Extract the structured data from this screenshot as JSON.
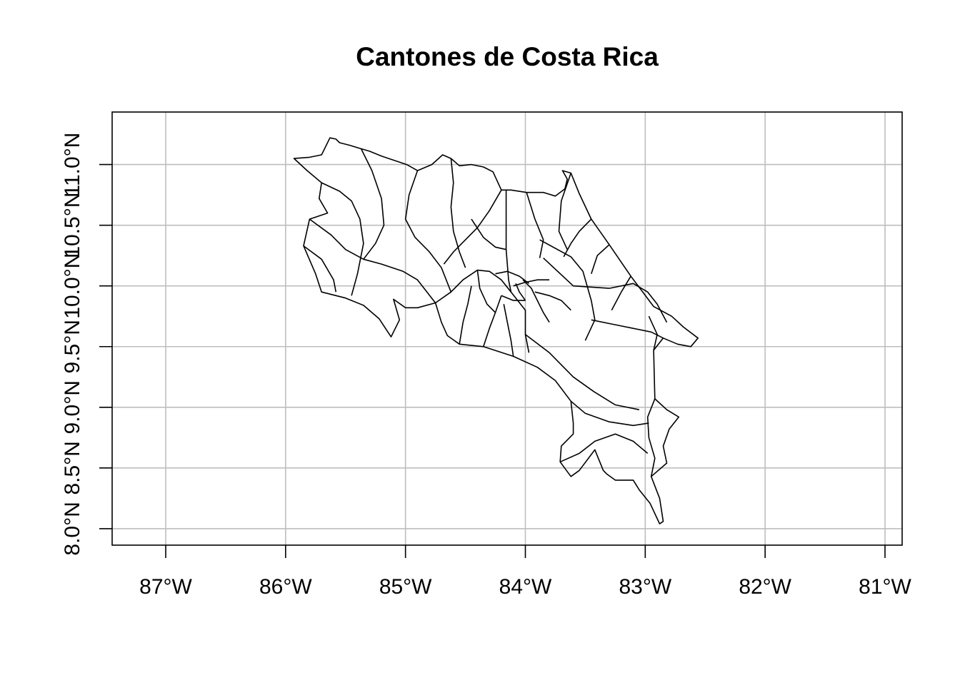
{
  "title": "Cantones de Costa Rica",
  "map": {
    "region": "Costa Rica",
    "feature_type": "cantones",
    "projection": "longlat",
    "xlim": [
      -87.45,
      -80.9
    ],
    "ylim": [
      7.88,
      11.46
    ],
    "grid": true,
    "colors": {
      "background": "#ffffff",
      "grid": "#bebebe",
      "border": "#000000"
    },
    "x_ticks": [
      {
        "value": -87,
        "label": "87°W"
      },
      {
        "value": -86,
        "label": "86°W"
      },
      {
        "value": -85,
        "label": "85°W"
      },
      {
        "value": -84,
        "label": "84°W"
      },
      {
        "value": -83,
        "label": "83°W"
      },
      {
        "value": -82,
        "label": "82°W"
      },
      {
        "value": -81,
        "label": "81°W"
      }
    ],
    "y_ticks": [
      {
        "value": 8.0,
        "label": "8.0°N"
      },
      {
        "value": 8.5,
        "label": "8.5°N"
      },
      {
        "value": 9.0,
        "label": "9.0°N"
      },
      {
        "value": 9.5,
        "label": "9.5°N"
      },
      {
        "value": 10.0,
        "label": "10.0°N"
      },
      {
        "value": 10.5,
        "label": "10.5°N"
      },
      {
        "value": 11.0,
        "label": "11.0°N"
      }
    ],
    "outline": [
      [
        -85.63,
        11.22
      ],
      [
        -85.58,
        11.21
      ],
      [
        -85.55,
        11.18
      ],
      [
        -85.47,
        11.16
      ],
      [
        -85.37,
        11.13
      ],
      [
        -85.3,
        11.11
      ],
      [
        -85.2,
        11.07
      ],
      [
        -84.99,
        11.0
      ],
      [
        -84.9,
        10.95
      ],
      [
        -84.78,
        11.0
      ],
      [
        -84.69,
        11.08
      ],
      [
        -84.62,
        11.05
      ],
      [
        -84.55,
        10.99
      ],
      [
        -84.45,
        11.0
      ],
      [
        -84.35,
        10.98
      ],
      [
        -84.27,
        10.94
      ],
      [
        -84.2,
        10.79
      ],
      [
        -84.12,
        10.79
      ],
      [
        -83.99,
        10.77
      ],
      [
        -83.85,
        10.77
      ],
      [
        -83.75,
        10.74
      ],
      [
        -83.67,
        10.8
      ],
      [
        -83.65,
        10.88
      ],
      [
        -83.69,
        10.95
      ],
      [
        -83.62,
        10.93
      ],
      [
        -83.55,
        10.76
      ],
      [
        -83.45,
        10.55
      ],
      [
        -83.3,
        10.34
      ],
      [
        -83.12,
        10.08
      ],
      [
        -82.93,
        9.83
      ],
      [
        -82.78,
        9.75
      ],
      [
        -82.68,
        9.66
      ],
      [
        -82.56,
        9.57
      ],
      [
        -82.62,
        9.5
      ],
      [
        -82.73,
        9.52
      ],
      [
        -82.85,
        9.57
      ],
      [
        -82.93,
        9.47
      ],
      [
        -82.92,
        9.07
      ],
      [
        -82.82,
        8.98
      ],
      [
        -82.72,
        8.92
      ],
      [
        -82.8,
        8.82
      ],
      [
        -82.85,
        8.68
      ],
      [
        -82.82,
        8.54
      ],
      [
        -82.95,
        8.43
      ],
      [
        -82.88,
        8.25
      ],
      [
        -82.85,
        8.06
      ],
      [
        -82.88,
        8.04
      ],
      [
        -82.96,
        8.21
      ],
      [
        -83.05,
        8.32
      ],
      [
        -83.1,
        8.4
      ],
      [
        -83.25,
        8.4
      ],
      [
        -83.32,
        8.45
      ],
      [
        -83.35,
        8.48
      ],
      [
        -83.42,
        8.65
      ],
      [
        -83.55,
        8.48
      ],
      [
        -83.62,
        8.43
      ],
      [
        -83.71,
        8.55
      ],
      [
        -83.7,
        8.68
      ],
      [
        -83.6,
        8.78
      ],
      [
        -83.6,
        8.87
      ],
      [
        -83.62,
        9.05
      ],
      [
        -83.75,
        9.22
      ],
      [
        -83.9,
        9.33
      ],
      [
        -84.1,
        9.42
      ],
      [
        -84.35,
        9.5
      ],
      [
        -84.55,
        9.52
      ],
      [
        -84.65,
        9.59
      ],
      [
        -84.7,
        9.7
      ],
      [
        -84.75,
        9.86
      ],
      [
        -84.9,
        9.82
      ],
      [
        -85.0,
        9.82
      ],
      [
        -85.1,
        9.89
      ],
      [
        -85.05,
        9.72
      ],
      [
        -85.12,
        9.58
      ],
      [
        -85.22,
        9.73
      ],
      [
        -85.35,
        9.84
      ],
      [
        -85.5,
        9.9
      ],
      [
        -85.7,
        9.95
      ],
      [
        -85.75,
        10.1
      ],
      [
        -85.85,
        10.33
      ],
      [
        -85.8,
        10.55
      ],
      [
        -85.65,
        10.6
      ],
      [
        -85.72,
        10.72
      ],
      [
        -85.7,
        10.85
      ],
      [
        -85.82,
        10.95
      ],
      [
        -85.93,
        11.05
      ],
      [
        -85.8,
        11.06
      ],
      [
        -85.7,
        11.08
      ],
      [
        -85.63,
        11.22
      ]
    ],
    "internal_borders": [
      [
        [
          -84.16,
          10.79
        ],
        [
          -84.16,
          10.3
        ],
        [
          -84.14,
          10.05
        ],
        [
          -84.12,
          9.95
        ]
      ],
      [
        [
          -83.88,
          10.38
        ],
        [
          -83.62,
          10.24
        ],
        [
          -83.52,
          10.12
        ],
        [
          -83.45,
          9.88
        ],
        [
          -83.42,
          9.72
        ],
        [
          -83.5,
          9.55
        ]
      ],
      [
        [
          -83.85,
          10.23
        ],
        [
          -83.6,
          10.0
        ],
        [
          -83.3,
          9.98
        ]
      ],
      [
        [
          -83.3,
          9.98
        ],
        [
          -83.1,
          10.02
        ],
        [
          -82.98,
          9.95
        ],
        [
          -82.9,
          9.85
        ],
        [
          -82.82,
          9.7
        ]
      ],
      [
        [
          -82.93,
          9.47
        ],
        [
          -82.9,
          9.6
        ],
        [
          -82.97,
          9.75
        ]
      ],
      [
        [
          -84.12,
          9.95
        ],
        [
          -84.0,
          9.8
        ],
        [
          -84.0,
          9.6
        ],
        [
          -83.97,
          9.45
        ]
      ],
      [
        [
          -84.0,
          9.6
        ],
        [
          -83.8,
          9.45
        ],
        [
          -83.6,
          9.25
        ],
        [
          -83.43,
          9.13
        ],
        [
          -83.25,
          9.02
        ],
        [
          -83.05,
          8.98
        ]
      ],
      [
        [
          -83.62,
          9.05
        ],
        [
          -83.5,
          8.95
        ],
        [
          -83.3,
          8.88
        ],
        [
          -83.1,
          8.85
        ],
        [
          -82.97,
          8.87
        ]
      ],
      [
        [
          -83.71,
          8.55
        ],
        [
          -83.55,
          8.62
        ],
        [
          -83.42,
          8.72
        ],
        [
          -83.25,
          8.78
        ],
        [
          -83.1,
          8.72
        ],
        [
          -82.98,
          8.62
        ]
      ],
      [
        [
          -82.92,
          9.07
        ],
        [
          -82.98,
          8.92
        ],
        [
          -82.97,
          8.75
        ],
        [
          -82.92,
          8.58
        ],
        [
          -82.95,
          8.43
        ]
      ],
      [
        [
          -84.75,
          9.86
        ],
        [
          -84.62,
          9.95
        ],
        [
          -84.52,
          10.05
        ],
        [
          -84.4,
          10.13
        ],
        [
          -84.3,
          10.12
        ],
        [
          -84.2,
          10.05
        ],
        [
          -84.12,
          9.95
        ]
      ],
      [
        [
          -84.55,
          9.52
        ],
        [
          -84.52,
          9.7
        ],
        [
          -84.48,
          9.85
        ],
        [
          -84.45,
          10.0
        ]
      ],
      [
        [
          -84.35,
          9.5
        ],
        [
          -84.3,
          9.65
        ],
        [
          -84.25,
          9.78
        ],
        [
          -84.2,
          9.92
        ]
      ],
      [
        [
          -84.1,
          9.42
        ],
        [
          -84.12,
          9.55
        ],
        [
          -84.15,
          9.7
        ],
        [
          -84.18,
          9.85
        ]
      ],
      [
        [
          -84.62,
          11.05
        ],
        [
          -84.6,
          10.85
        ],
        [
          -84.62,
          10.65
        ],
        [
          -84.6,
          10.45
        ],
        [
          -84.55,
          10.28
        ],
        [
          -84.5,
          10.15
        ]
      ],
      [
        [
          -84.9,
          10.95
        ],
        [
          -84.97,
          10.75
        ],
        [
          -85.0,
          10.55
        ],
        [
          -84.92,
          10.4
        ],
        [
          -84.8,
          10.28
        ],
        [
          -84.7,
          10.15
        ],
        [
          -84.62,
          9.95
        ]
      ],
      [
        [
          -85.37,
          11.13
        ],
        [
          -85.28,
          10.95
        ],
        [
          -85.2,
          10.72
        ],
        [
          -85.18,
          10.5
        ],
        [
          -85.25,
          10.35
        ],
        [
          -85.35,
          10.22
        ]
      ],
      [
        [
          -85.7,
          10.85
        ],
        [
          -85.55,
          10.78
        ],
        [
          -85.45,
          10.7
        ],
        [
          -85.38,
          10.55
        ],
        [
          -85.35,
          10.35
        ],
        [
          -85.4,
          10.1
        ],
        [
          -85.45,
          9.92
        ]
      ],
      [
        [
          -85.8,
          10.55
        ],
        [
          -85.62,
          10.42
        ],
        [
          -85.5,
          10.3
        ],
        [
          -85.35,
          10.22
        ],
        [
          -85.2,
          10.18
        ],
        [
          -85.02,
          10.12
        ],
        [
          -84.9,
          10.05
        ],
        [
          -84.75,
          9.86
        ]
      ],
      [
        [
          -85.85,
          10.33
        ],
        [
          -85.7,
          10.22
        ],
        [
          -85.6,
          10.05
        ],
        [
          -85.58,
          9.95
        ]
      ],
      [
        [
          -84.2,
          10.79
        ],
        [
          -84.3,
          10.62
        ],
        [
          -84.4,
          10.48
        ],
        [
          -84.5,
          10.38
        ],
        [
          -84.6,
          10.28
        ],
        [
          -84.68,
          10.18
        ]
      ],
      [
        [
          -84.45,
          10.55
        ],
        [
          -84.35,
          10.4
        ],
        [
          -84.25,
          10.32
        ],
        [
          -84.16,
          10.3
        ]
      ],
      [
        [
          -83.99,
          10.77
        ],
        [
          -83.92,
          10.55
        ],
        [
          -83.85,
          10.38
        ],
        [
          -83.88,
          10.23
        ]
      ],
      [
        [
          -83.62,
          10.93
        ],
        [
          -83.7,
          10.7
        ],
        [
          -83.72,
          10.45
        ],
        [
          -83.65,
          10.3
        ]
      ],
      [
        [
          -83.45,
          10.55
        ],
        [
          -83.55,
          10.45
        ],
        [
          -83.62,
          10.35
        ],
        [
          -83.68,
          10.24
        ]
      ],
      [
        [
          -83.3,
          10.34
        ],
        [
          -83.4,
          10.25
        ],
        [
          -83.45,
          10.1
        ]
      ],
      [
        [
          -83.12,
          10.08
        ],
        [
          -83.2,
          9.95
        ],
        [
          -83.28,
          9.8
        ]
      ],
      [
        [
          -82.85,
          9.57
        ],
        [
          -82.95,
          9.62
        ],
        [
          -83.1,
          9.65
        ],
        [
          -83.25,
          9.68
        ],
        [
          -83.45,
          9.72
        ]
      ],
      [
        [
          -84.4,
          10.13
        ],
        [
          -84.38,
          9.98
        ],
        [
          -84.32,
          9.85
        ],
        [
          -84.25,
          9.78
        ]
      ],
      [
        [
          -84.02,
          10.05
        ],
        [
          -83.95,
          9.98
        ],
        [
          -83.9,
          9.88
        ],
        [
          -83.85,
          9.78
        ],
        [
          -83.8,
          9.7
        ]
      ],
      [
        [
          -84.1,
          10.0
        ],
        [
          -84.0,
          10.03
        ],
        [
          -83.9,
          10.05
        ],
        [
          -83.8,
          10.05
        ]
      ],
      [
        [
          -83.92,
          9.95
        ],
        [
          -83.8,
          9.92
        ],
        [
          -83.7,
          9.88
        ],
        [
          -83.62,
          9.8
        ]
      ],
      [
        [
          -84.25,
          10.1
        ],
        [
          -84.15,
          10.12
        ],
        [
          -84.05,
          10.08
        ],
        [
          -83.97,
          10.02
        ]
      ],
      [
        [
          -84.0,
          9.88
        ],
        [
          -84.05,
          9.95
        ],
        [
          -84.08,
          10.02
        ]
      ],
      [
        [
          -84.2,
          9.92
        ],
        [
          -84.1,
          9.88
        ],
        [
          -84.0,
          9.88
        ]
      ]
    ]
  }
}
